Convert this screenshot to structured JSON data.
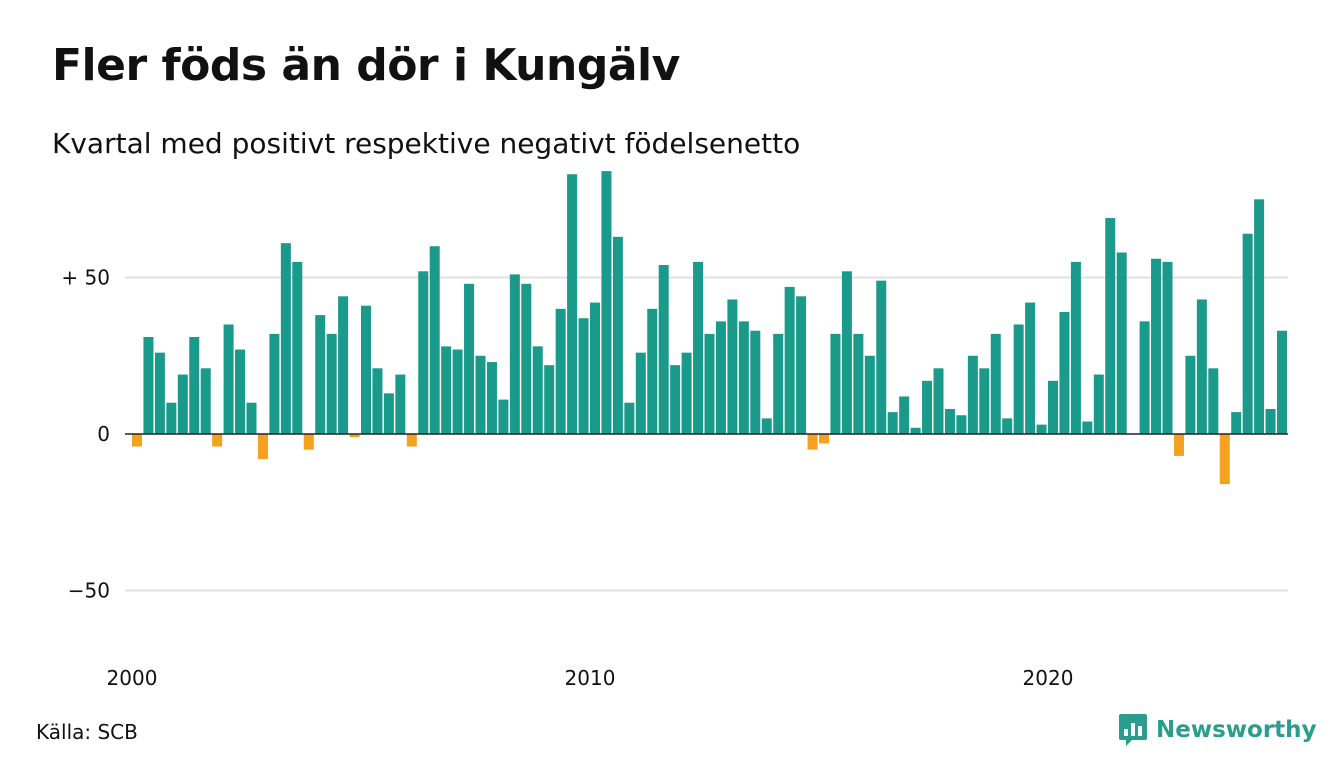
{
  "title": "Fler föds än dör i Kungälv",
  "subtitle": "Kvartal med positivt respektive negativt födelsenetto",
  "source": "Källa: SCB",
  "brand": {
    "name": "Newsworthy"
  },
  "colors": {
    "positive": "#1a9a8a",
    "negative": "#f3a11e",
    "grid": "#e0e0e0",
    "zero": "#222222",
    "brand": "#2a9d8f"
  },
  "chart_data": {
    "type": "bar",
    "x_start": 2000,
    "x_step": "quarter",
    "ylim": [
      -77,
      85
    ],
    "y_ticks": [
      {
        "value": 50,
        "label": "+ 50"
      },
      {
        "value": 0,
        "label": "0"
      },
      {
        "value": -50,
        "label": "−50"
      }
    ],
    "x_ticks": [
      {
        "value": 2000,
        "label": "2000"
      },
      {
        "value": 2010,
        "label": "2010"
      },
      {
        "value": 2020,
        "label": "2020"
      }
    ],
    "values": [
      -4,
      31,
      26,
      10,
      19,
      31,
      21,
      -4,
      35,
      27,
      10,
      -8,
      32,
      61,
      55,
      -5,
      38,
      32,
      44,
      -1,
      41,
      21,
      13,
      19,
      -4,
      52,
      60,
      28,
      27,
      48,
      25,
      23,
      11,
      51,
      48,
      28,
      22,
      40,
      83,
      37,
      42,
      84,
      63,
      10,
      26,
      40,
      54,
      22,
      26,
      55,
      32,
      36,
      43,
      36,
      33,
      5,
      32,
      47,
      44,
      -5,
      -3,
      32,
      52,
      32,
      25,
      49,
      7,
      12,
      2,
      17,
      21,
      8,
      6,
      25,
      21,
      32,
      5,
      35,
      42,
      3,
      17,
      39,
      55,
      4,
      19,
      69,
      58,
      0,
      36,
      56,
      55,
      -7,
      25,
      43,
      21,
      -16,
      7,
      64,
      75,
      8,
      33
    ]
  }
}
